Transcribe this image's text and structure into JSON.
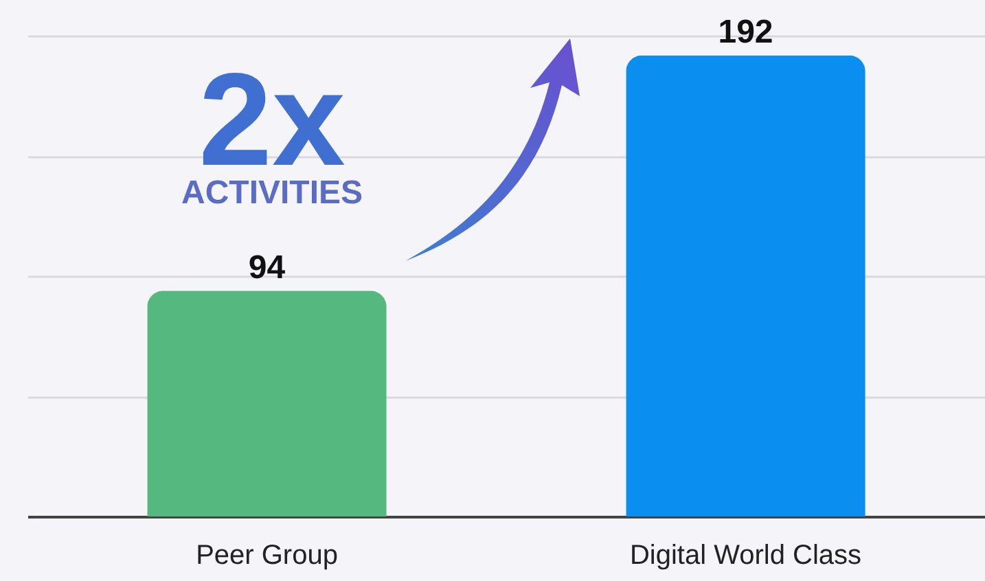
{
  "chart_data": {
    "type": "bar",
    "categories": [
      "Peer Group",
      "Digital World Class"
    ],
    "values": [
      94,
      192
    ],
    "colors": [
      "#55b87e",
      "#0a8ef0"
    ],
    "ylim": [
      0,
      215
    ],
    "yticks": [
      {
        "value": 0,
        "label": null
      },
      {
        "value": 50,
        "label": null
      },
      {
        "value": 100,
        "label": null
      },
      {
        "value": 150,
        "label": null
      },
      {
        "value": 200,
        "label": null
      }
    ],
    "tick_labels": "x",
    "grid": "y",
    "data_labels": true,
    "annotations": [
      "2x",
      "ACTIVITIES"
    ]
  }
}
